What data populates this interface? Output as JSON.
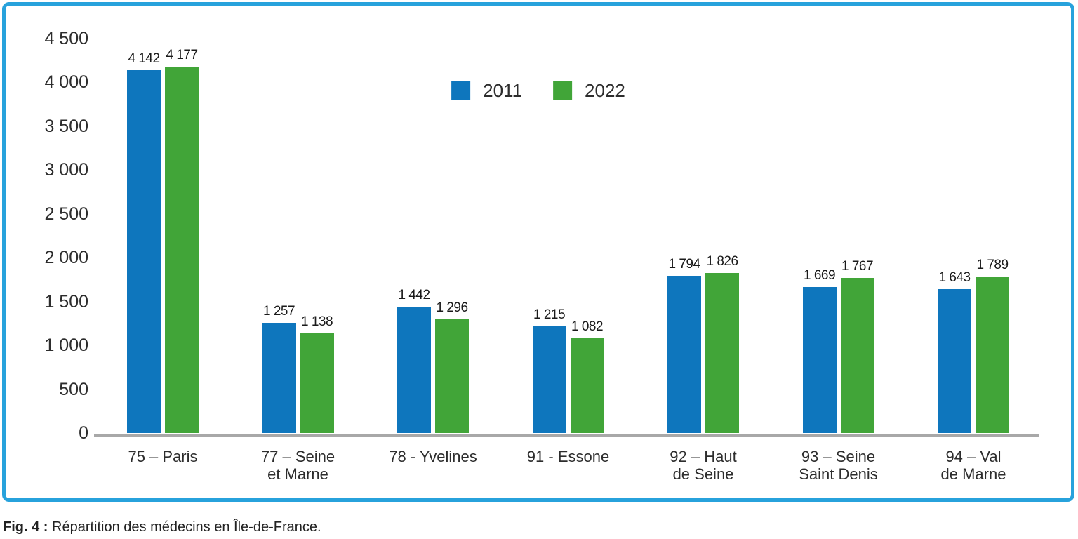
{
  "figure": {
    "caption_prefix": "Fig. 4 :",
    "caption_text": " Répartition des médecins en Île-de-France."
  },
  "chart_data": {
    "type": "bar",
    "categories": [
      [
        "75 – Paris"
      ],
      [
        "77 – Seine",
        "et Marne"
      ],
      [
        "78 - Yvelines"
      ],
      [
        "91 - Essone"
      ],
      [
        "92 – Haut",
        "de Seine"
      ],
      [
        "93 – Seine",
        "Saint Denis"
      ],
      [
        "94 – Val",
        "de Marne"
      ]
    ],
    "series": [
      {
        "name": "2011",
        "color": "#0e76bd",
        "values": [
          4142,
          1257,
          1442,
          1215,
          1794,
          1669,
          1643
        ]
      },
      {
        "name": "2022",
        "color": "#41a538",
        "values": [
          4177,
          1138,
          1296,
          1082,
          1826,
          1767,
          1789
        ]
      }
    ],
    "title": "",
    "xlabel": "",
    "ylabel": "",
    "ylim": [
      0,
      4500
    ],
    "ytick_step": 500,
    "grid": false,
    "legend_position": "top-center",
    "number_format": "space-thousands"
  },
  "colors": {
    "border_blue": "#27a2dc",
    "axis_gray": "#a8a8a8",
    "text_dark": "#2d2d2d",
    "bar_2011": "#0e76bd",
    "bar_2022": "#41a538"
  }
}
